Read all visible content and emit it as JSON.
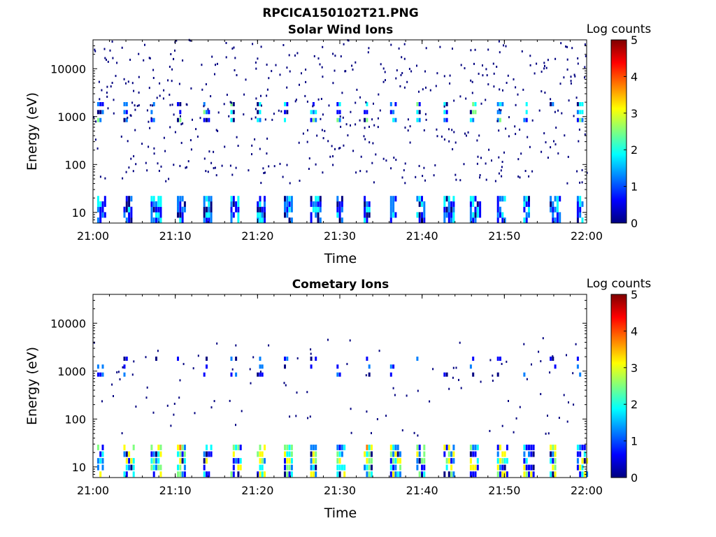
{
  "figure_title": "RPCICA150102T21.PNG",
  "colormap": [
    "#00007f",
    "#0000ff",
    "#007fff",
    "#00ffff",
    "#7fff7f",
    "#ffff00",
    "#ff7f00",
    "#ff0000",
    "#7f0000"
  ],
  "chart_data": [
    {
      "type": "heatmap",
      "title": "Solar Wind Ions",
      "xlabel": "Time",
      "ylabel": "Energy (eV)",
      "x_ticks": [
        "21:00",
        "21:10",
        "21:20",
        "21:30",
        "21:40",
        "21:50",
        "22:00"
      ],
      "xlim_minutes": [
        0,
        60
      ],
      "y_scale": "log",
      "ylim": [
        6,
        40000
      ],
      "y_ticks": [
        10,
        100,
        1000,
        10000
      ],
      "y_tick_labels": [
        "10",
        "100",
        "1000",
        "10000"
      ],
      "colorbar": {
        "label": "Log counts",
        "range": [
          0,
          5
        ],
        "ticks": [
          "0",
          "1",
          "2",
          "3",
          "4",
          "5"
        ]
      },
      "bands": [
        {
          "energy_range": [
            6,
            22
          ],
          "log_counts_range": [
            0,
            2.0
          ],
          "description": "low-energy bursts"
        },
        {
          "energy_range": [
            700,
            2200
          ],
          "log_counts_range": [
            0,
            2.5
          ],
          "description": "solar wind beam"
        },
        {
          "energy_range": [
            40,
            40000
          ],
          "log_counts_range": [
            0,
            0.3
          ],
          "description": "background counts"
        }
      ],
      "burst_times_minutes": [
        0.8,
        4.0,
        7.3,
        10.5,
        13.7,
        17.0,
        20.2,
        23.5,
        26.7,
        29.9,
        33.2,
        36.4,
        39.6,
        42.9,
        46.1,
        49.4,
        52.6,
        55.8,
        59.1
      ]
    },
    {
      "type": "heatmap",
      "title": "Cometary Ions",
      "xlabel": "Time",
      "ylabel": "Energy (eV)",
      "x_ticks": [
        "21:00",
        "21:10",
        "21:20",
        "21:30",
        "21:40",
        "21:50",
        "22:00"
      ],
      "xlim_minutes": [
        0,
        60
      ],
      "y_scale": "log",
      "ylim": [
        6,
        40000
      ],
      "y_ticks": [
        10,
        100,
        1000,
        10000
      ],
      "y_tick_labels": [
        "10",
        "100",
        "1000",
        "10000"
      ],
      "colorbar": {
        "label": "Log counts",
        "range": [
          0,
          5
        ],
        "ticks": [
          "0",
          "1",
          "2",
          "3",
          "4",
          "5"
        ]
      },
      "bands": [
        {
          "energy_range": [
            6,
            30
          ],
          "log_counts_range": [
            0,
            3.5
          ],
          "description": "low-energy cometary ions"
        },
        {
          "energy_range": [
            700,
            2200
          ],
          "log_counts_range": [
            0,
            1.5
          ],
          "description": "sparse mid-energy counts"
        },
        {
          "energy_range": [
            40,
            5000
          ],
          "log_counts_range": [
            0,
            0.3
          ],
          "description": "background counts"
        }
      ],
      "burst_times_minutes": [
        0.8,
        4.0,
        7.3,
        10.5,
        13.7,
        17.0,
        20.2,
        23.5,
        26.7,
        29.9,
        33.2,
        36.4,
        39.6,
        42.9,
        46.1,
        49.4,
        52.6,
        55.8,
        59.1
      ]
    }
  ]
}
